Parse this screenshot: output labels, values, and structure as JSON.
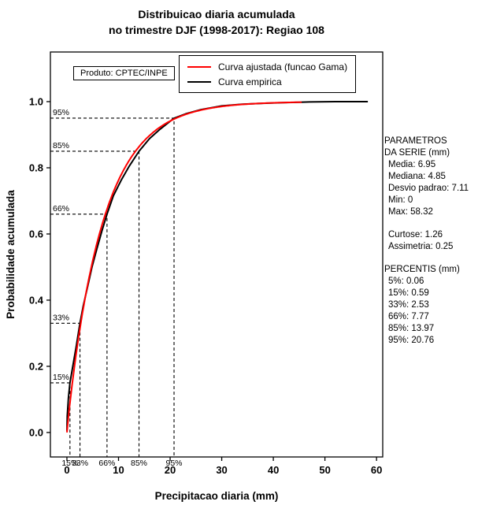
{
  "title": {
    "line1": "Distribuicao diaria acumulada",
    "line2": "no trimestre DJF (1998-2017): Regiao 108"
  },
  "legend": {
    "items": [
      {
        "label": "Curva ajustada (funcao Gama)",
        "color": "#ff0000"
      },
      {
        "label": "Curva empirica",
        "color": "#000000"
      }
    ]
  },
  "product_box": {
    "text": "Produto: CPTEC/INPE"
  },
  "side_panel": {
    "header_line1": "PARAMETROS",
    "header_line2": "DA SERIE (mm)",
    "stats": [
      "Media: 6.95",
      "Mediana: 4.85",
      "Desvio padrao: 7.11",
      "Min: 0",
      "Max: 58.32"
    ],
    "moments": [
      "Curtose: 1.26",
      "Assimetria: 0.25"
    ],
    "percentis_header": "PERCENTIS (mm)",
    "percentis": [
      "5%: 0.06",
      "15%: 0.59",
      "33%: 2.53",
      "66%: 7.77",
      "85%: 13.97",
      "95%: 20.76"
    ]
  },
  "chart_data": {
    "type": "line",
    "title": "Distribuicao diaria acumulada no trimestre DJF (1998-2017): Regiao 108",
    "xlabel": "Precipitacao diaria (mm)",
    "ylabel": "Probabilidade acumulada",
    "xlim": [
      0,
      60
    ],
    "ylim": [
      0,
      1
    ],
    "x_ticks": [
      0,
      10,
      20,
      30,
      40,
      50,
      60
    ],
    "y_tick_labels": [
      "0.0",
      "0.2",
      "0.4",
      "0.6",
      "0.8",
      "1.0"
    ],
    "grid": false,
    "legend_position": "top-center",
    "series": [
      {
        "name": "Curva ajustada (funcao Gama)",
        "color": "#ff0000",
        "type": "gamma_cdf",
        "mean": 6.95,
        "sd": 7.11,
        "x_end": 45.5
      },
      {
        "name": "Curva empirica",
        "color": "#000000",
        "type": "points",
        "x": [
          0,
          0.06,
          0.3,
          0.59,
          1.2,
          1.8,
          2.53,
          3.2,
          4,
          4.85,
          5.8,
          6.8,
          7.77,
          9,
          10.5,
          12,
          13.97,
          16,
          18,
          20.76,
          23,
          26,
          30,
          34,
          38,
          42,
          47,
          52,
          58.32
        ],
        "y": [
          0.005,
          0.05,
          0.105,
          0.15,
          0.205,
          0.26,
          0.33,
          0.385,
          0.44,
          0.5,
          0.555,
          0.61,
          0.66,
          0.715,
          0.762,
          0.803,
          0.85,
          0.888,
          0.916,
          0.95,
          0.963,
          0.976,
          0.987,
          0.992,
          0.995,
          0.997,
          0.999,
          1.0,
          1.0
        ]
      }
    ],
    "percentile_guides": [
      {
        "label": "15%",
        "p": 0.15,
        "x": 0.59
      },
      {
        "label": "33%",
        "p": 0.33,
        "x": 2.53
      },
      {
        "label": "66%",
        "p": 0.66,
        "x": 7.77
      },
      {
        "label": "85%",
        "p": 0.85,
        "x": 13.97
      },
      {
        "label": "95%",
        "p": 0.95,
        "x": 20.76
      }
    ],
    "stats": {
      "media": 6.95,
      "mediana": 4.85,
      "desvio_padrao": 7.11,
      "min": 0,
      "max": 58.32,
      "curtose": 1.26,
      "assimetria": 0.25,
      "percentis": {
        "5%": 0.06,
        "15%": 0.59,
        "33%": 2.53,
        "66%": 7.77,
        "85%": 13.97,
        "95%": 20.76
      }
    }
  }
}
